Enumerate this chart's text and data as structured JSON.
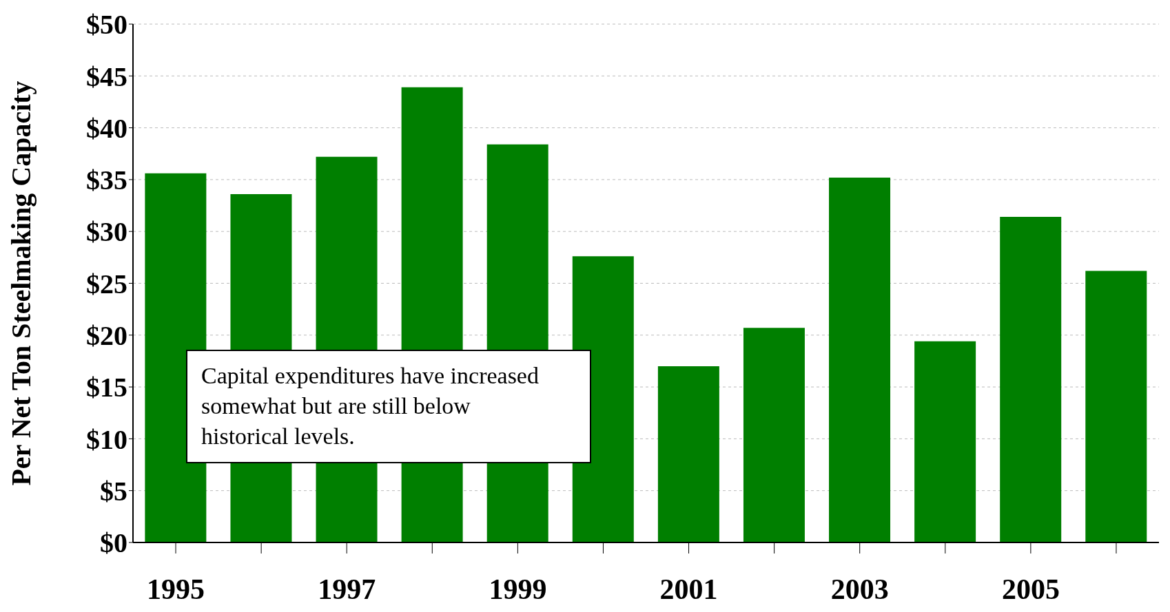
{
  "chart_data": {
    "type": "bar",
    "ylabel": "Per Net Ton Steelmaking Capacity",
    "categories": [
      "1995",
      null,
      "1997",
      null,
      "1999",
      null,
      "2001",
      null,
      "2003",
      null,
      "2005",
      null
    ],
    "values": [
      35.6,
      33.6,
      37.2,
      43.9,
      38.4,
      27.6,
      17.0,
      20.7,
      35.2,
      19.4,
      31.4,
      26.2
    ],
    "color": "#007f00",
    "ylim": [
      0,
      50
    ],
    "yticks": [
      {
        "value": 0,
        "label": "$0"
      },
      {
        "value": 5,
        "label": "$5"
      },
      {
        "value": 10,
        "label": "$10"
      },
      {
        "value": 15,
        "label": "$15"
      },
      {
        "value": 20,
        "label": "$20"
      },
      {
        "value": 25,
        "label": "$25"
      },
      {
        "value": 30,
        "label": "$30"
      },
      {
        "value": 35,
        "label": "$35"
      },
      {
        "value": 40,
        "label": "$40"
      },
      {
        "value": 45,
        "label": "$45"
      },
      {
        "value": 50,
        "label": "$50"
      }
    ],
    "grid": "y",
    "annotations": [
      "Capital expenditures have increased somewhat but are still below historical levels."
    ]
  }
}
